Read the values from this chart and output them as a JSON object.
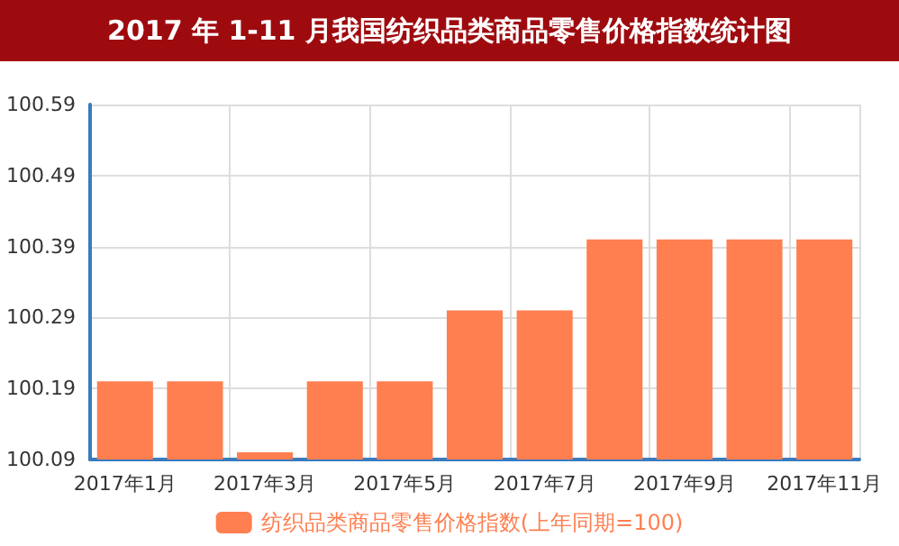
{
  "chart_data": {
    "type": "bar",
    "title": "2017 年 1-11 月我国纺织品类商品零售价格指数统计图",
    "categories": [
      "2017年1月",
      null,
      "2017年3月",
      null,
      "2017年5月",
      null,
      "2017年7月",
      null,
      "2017年9月",
      null,
      "2017年11月"
    ],
    "series": [
      {
        "name": "纺织品类商品零售价格指数(上年同期=100)",
        "color": "#ff7f50",
        "values": [
          100.2,
          100.2,
          100.1,
          100.2,
          100.2,
          100.3,
          100.3,
          100.4,
          100.4,
          100.4,
          100.4
        ]
      }
    ],
    "ylim": [
      100.09,
      100.59
    ],
    "yticks": [
      100.09,
      100.19,
      100.29,
      100.39,
      100.49,
      100.59
    ],
    "grid": true,
    "legend": "bottom"
  }
}
